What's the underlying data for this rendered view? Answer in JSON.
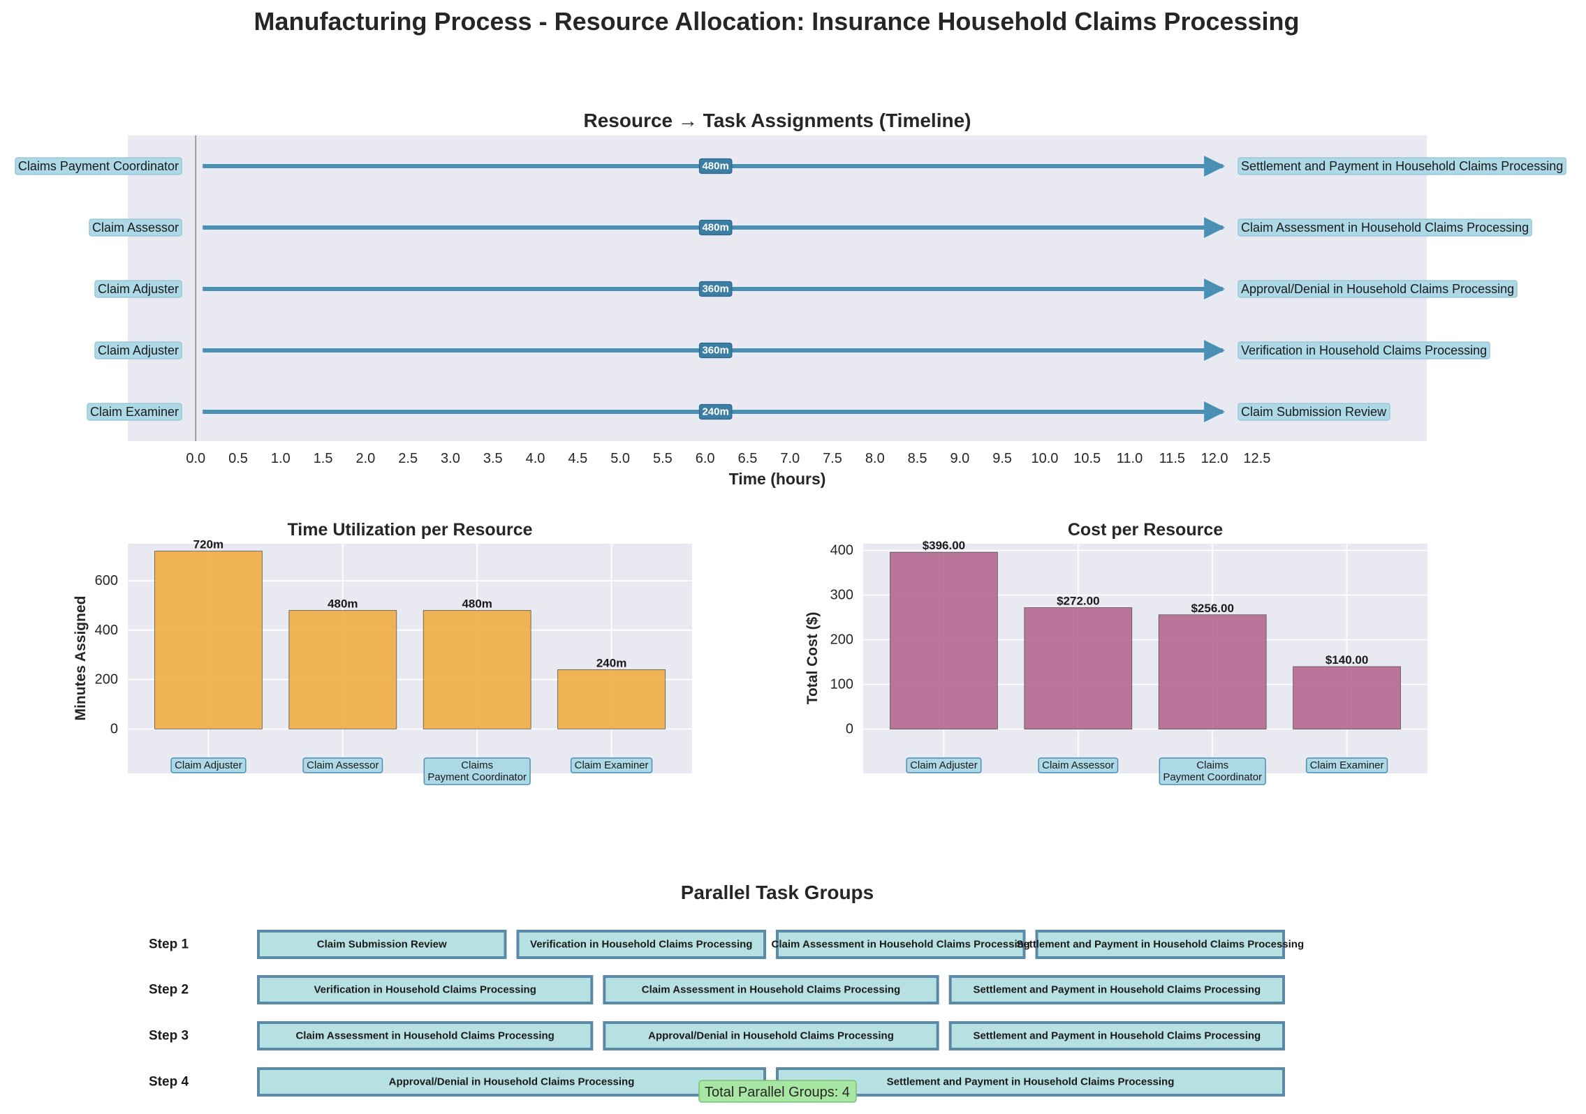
{
  "title": "Manufacturing Process - Resource Allocation: Insurance Household Claims Processing",
  "colors": {
    "panel_bg": "#e9e9f2",
    "arrow": "#4a90b4",
    "label_box": "#add8e6",
    "time_bar": "#f0a83a",
    "cost_bar": "#b06089",
    "group_box": "#b7e0e2",
    "group_border": "#5a8aa6",
    "footer_box": "#a8e6a3"
  },
  "chart_data": [
    {
      "type": "timeline",
      "title": "Resource → Task Assignments (Timeline)",
      "xlabel": "Time (hours)",
      "xticks": [
        "0.0",
        "0.5",
        "1.0",
        "1.5",
        "2.0",
        "2.5",
        "3.0",
        "3.5",
        "4.0",
        "4.5",
        "5.0",
        "5.5",
        "6.0",
        "6.5",
        "7.0",
        "7.5",
        "8.0",
        "8.5",
        "9.0",
        "9.5",
        "10.0",
        "10.5",
        "11.0",
        "11.5",
        "12.0",
        "12.5"
      ],
      "xlim": [
        -0.8,
        14.5
      ],
      "arrow_span_hours": [
        0.0,
        12.0
      ],
      "assignments": [
        {
          "resource": "Claims Payment Coordinator",
          "task": "Settlement and Payment in Household Claims Processing",
          "duration_label": "480m"
        },
        {
          "resource": "Claim Assessor",
          "task": "Claim Assessment in Household Claims Processing",
          "duration_label": "480m"
        },
        {
          "resource": "Claim Adjuster",
          "task": "Approval/Denial in Household Claims Processing",
          "duration_label": "360m"
        },
        {
          "resource": "Claim Adjuster",
          "task": "Verification in Household Claims Processing",
          "duration_label": "360m"
        },
        {
          "resource": "Claim Examiner",
          "task": "Claim Submission Review",
          "duration_label": "240m"
        }
      ]
    },
    {
      "type": "bar",
      "title": "Time Utilization per Resource",
      "ylabel": "Minutes Assigned",
      "ylim": [
        -180,
        750
      ],
      "yticks": [
        0,
        200,
        400,
        600
      ],
      "categories": [
        "Claim Adjuster",
        "Claim Assessor",
        "Claims\nPayment Coordinator",
        "Claim Examiner"
      ],
      "values": [
        720,
        480,
        480,
        240
      ],
      "value_labels": [
        "720m",
        "480m",
        "480m",
        "240m"
      ]
    },
    {
      "type": "bar",
      "title": "Cost per Resource",
      "ylabel": "Total Cost ($)",
      "ylim": [
        -99,
        415
      ],
      "yticks": [
        0,
        100,
        200,
        300,
        400
      ],
      "categories": [
        "Claim Adjuster",
        "Claim Assessor",
        "Claims\nPayment Coordinator",
        "Claim Examiner"
      ],
      "values": [
        396,
        272,
        256,
        140
      ],
      "value_labels": [
        "$396.00",
        "$272.00",
        "$256.00",
        "$140.00"
      ]
    },
    {
      "type": "table",
      "title": "Parallel Task Groups",
      "steps": [
        {
          "label": "Step 1",
          "tasks": [
            "Claim Submission Review",
            "Verification in Household Claims Processing",
            "Claim Assessment in Household Claims Processing",
            "Settlement and Payment in Household Claims Processing"
          ]
        },
        {
          "label": "Step 2",
          "tasks": [
            "Verification in Household Claims Processing",
            "Claim Assessment in Household Claims Processing",
            "Settlement and Payment in Household Claims Processing"
          ]
        },
        {
          "label": "Step 3",
          "tasks": [
            "Claim Assessment in Household Claims Processing",
            "Approval/Denial in Household Claims Processing",
            "Settlement and Payment in Household Claims Processing"
          ]
        },
        {
          "label": "Step 4",
          "tasks": [
            "Approval/Denial in Household Claims Processing",
            "Settlement and Payment in Household Claims Processing"
          ]
        }
      ],
      "footer": "Total Parallel Groups: 4"
    }
  ]
}
